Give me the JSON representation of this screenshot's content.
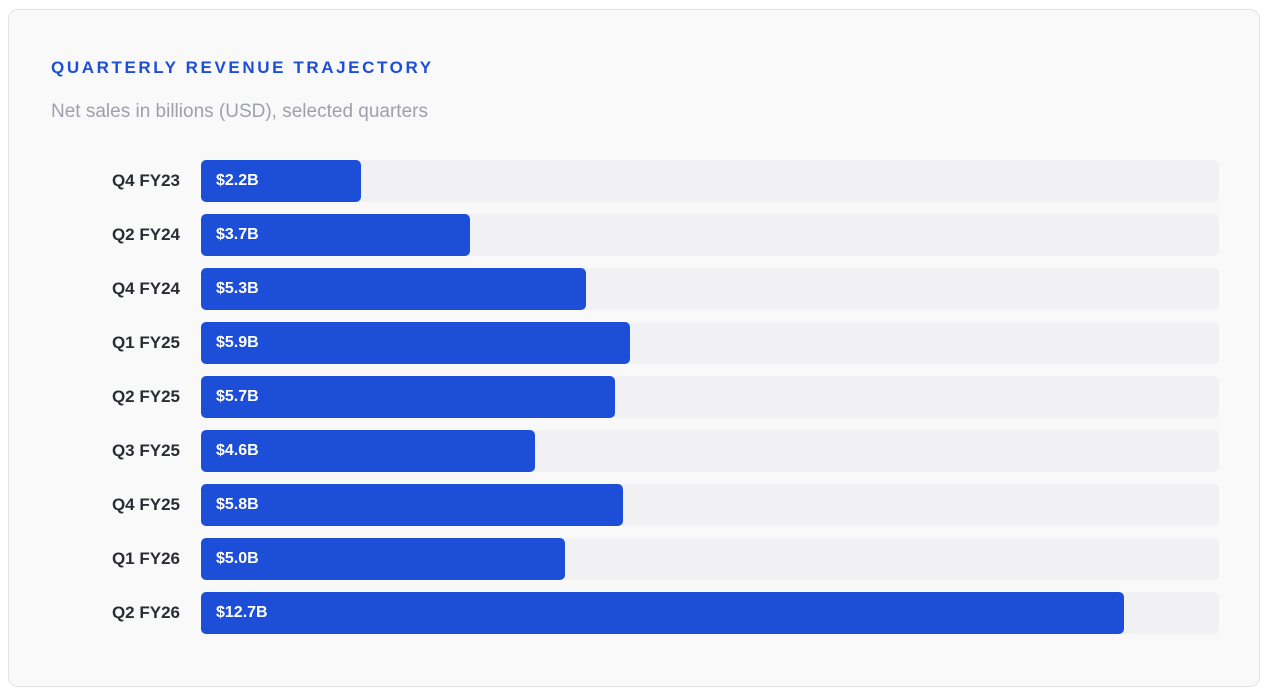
{
  "colors": {
    "accent": "#1d4ed8",
    "track": "#f1f1f3",
    "card_background": "#f9f9fa",
    "subtitle": "#9ea1a9",
    "category_text": "#2a2c33",
    "value_text": "#ffffff"
  },
  "chart_data": {
    "type": "bar",
    "orientation": "horizontal",
    "title": "QUARTERLY REVENUE TRAJECTORY",
    "subtitle": "Net sales in billions (USD), selected quarters",
    "categories": [
      "Q4 FY23",
      "Q2 FY24",
      "Q4 FY24",
      "Q1 FY25",
      "Q2 FY25",
      "Q3 FY25",
      "Q4 FY25",
      "Q1 FY26",
      "Q2 FY26"
    ],
    "values": [
      2.2,
      3.7,
      5.3,
      5.9,
      5.7,
      4.6,
      5.8,
      5.0,
      12.7
    ],
    "value_labels": [
      "$2.2B",
      "$3.7B",
      "$5.3B",
      "$5.9B",
      "$5.7B",
      "$4.6B",
      "$5.8B",
      "$5.0B",
      "$12.7B"
    ],
    "xlim": [
      0,
      14
    ],
    "grid": false,
    "legend": "none"
  }
}
